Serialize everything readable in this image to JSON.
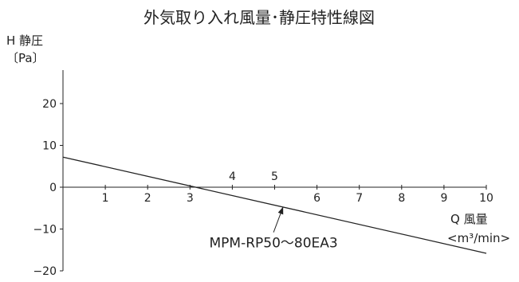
{
  "chart_data": {
    "type": "line",
    "title": "外気取り入れ風量･静圧特性線図",
    "ylabel_line1": "H 静圧",
    "ylabel_line2": "〔Pa〕",
    "xlabel_line1": "Q 風量",
    "xlabel_line2": "<m³/min>",
    "xlim": [
      0,
      10
    ],
    "ylim": [
      -20,
      20
    ],
    "x_ticks": [
      1,
      2,
      3,
      4,
      5,
      6,
      7,
      8,
      9,
      10
    ],
    "x_tick_labels": [
      "1",
      "2",
      "3",
      "4",
      "5",
      "6",
      "7",
      "8",
      "9",
      "10"
    ],
    "y_ticks": [
      20,
      10,
      0,
      -10,
      -20
    ],
    "y_tick_labels": [
      "20",
      "10",
      "0",
      "−10",
      "−20"
    ],
    "grid": false,
    "series": [
      {
        "x": [
          0,
          10
        ],
        "y": [
          7.2,
          -15.8
        ]
      }
    ],
    "annotations": [
      {
        "text": "MPM-RP50〜80EA3",
        "points_to": {
          "x": 5.2,
          "y": -4.7
        }
      }
    ]
  }
}
